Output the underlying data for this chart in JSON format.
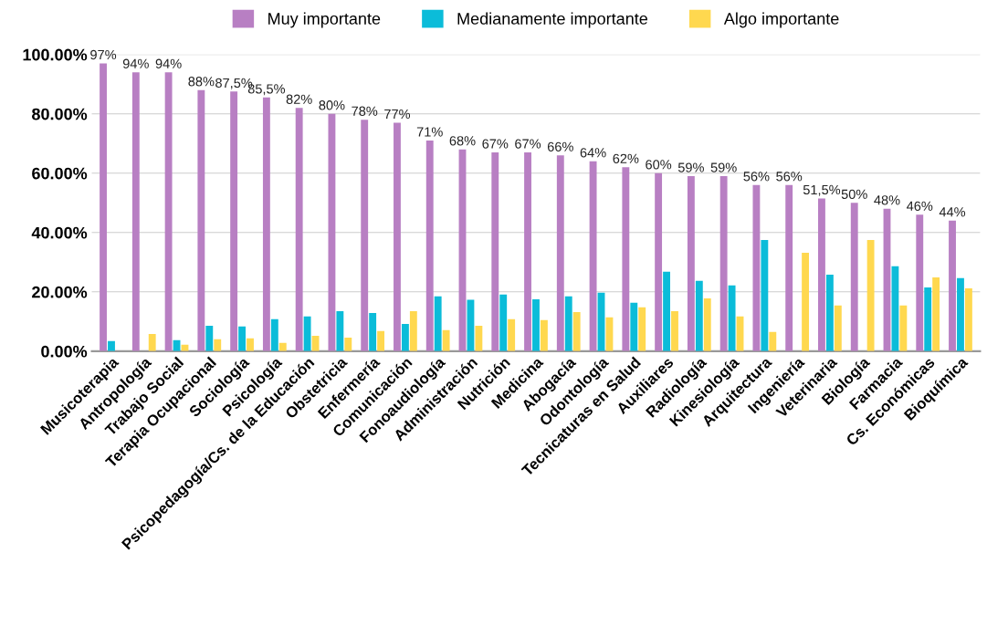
{
  "chart_data": {
    "type": "bar",
    "categories": [
      "Musicoterapia",
      "Antropología",
      "Trabajo Social",
      "Terapia Ocupacional",
      "Sociología",
      "Psicología",
      "Psicopedagogía/Cs. de la Educación",
      "Obstetricia",
      "Enfermería",
      "Comunicación",
      "Fonoaudiología",
      "Administración",
      "Nutrición",
      "Medicina",
      "Abogacía",
      "Odontología",
      "Tecnicaturas en Salud",
      "Auxiliares",
      "Radiología",
      "Kinesiología",
      "Arquitectura",
      "Ingeniería",
      "Veterinaria",
      "Biología",
      "Farmacia",
      "Cs. Económicas",
      "Bioquímica"
    ],
    "series": [
      {
        "name": "Muy importante",
        "color": "#b87fc3",
        "values": [
          97,
          94,
          94,
          88,
          87.5,
          85.5,
          82,
          80,
          78,
          77,
          71,
          68,
          67,
          67,
          66,
          64,
          62,
          60,
          59,
          59,
          56,
          56,
          51.5,
          50,
          48,
          46,
          44
        ],
        "value_labels": [
          "97%",
          "94%",
          "94%",
          "88%",
          "87,5%",
          "85,5%",
          "82%",
          "80%",
          "78%",
          "77%",
          "71%",
          "68%",
          "67%",
          "67%",
          "66%",
          "64%",
          "62%",
          "60%",
          "59%",
          "59%",
          "56%",
          "56%",
          "51,5%",
          "50%",
          "48%",
          "46%",
          "44%"
        ]
      },
      {
        "name": "Medianamente importante",
        "color": "#0bbcd9",
        "values": [
          3.4,
          0,
          3.7,
          8.6,
          8.3,
          10.8,
          11.7,
          13.5,
          12.9,
          9.2,
          18.5,
          17.3,
          19.1,
          17.5,
          18.5,
          19.7,
          16.3,
          26.8,
          23.7,
          22.2,
          37.5,
          0,
          25.8,
          0,
          28.6,
          21.5,
          24.6
        ]
      },
      {
        "name": "Algo importante",
        "color": "#ffd84f",
        "values": [
          0,
          5.8,
          2.2,
          4.0,
          4.3,
          2.8,
          5.2,
          4.6,
          6.8,
          13.5,
          7.1,
          8.6,
          10.8,
          10.5,
          13.2,
          11.4,
          14.8,
          13.5,
          17.8,
          11.7,
          6.5,
          33.2,
          15.4,
          37.5,
          15.4,
          24.9,
          21.2
        ]
      }
    ],
    "ylim": [
      0,
      100
    ],
    "yticks": [
      {
        "value": 0,
        "label": "0.00%"
      },
      {
        "value": 20,
        "label": "20.00%"
      },
      {
        "value": 40,
        "label": "40.00%"
      },
      {
        "value": 60,
        "label": "60.00%"
      },
      {
        "value": 80,
        "label": "80.00%"
      },
      {
        "value": 100,
        "label": "100.00%"
      }
    ],
    "grid": "y",
    "legend": "top"
  }
}
